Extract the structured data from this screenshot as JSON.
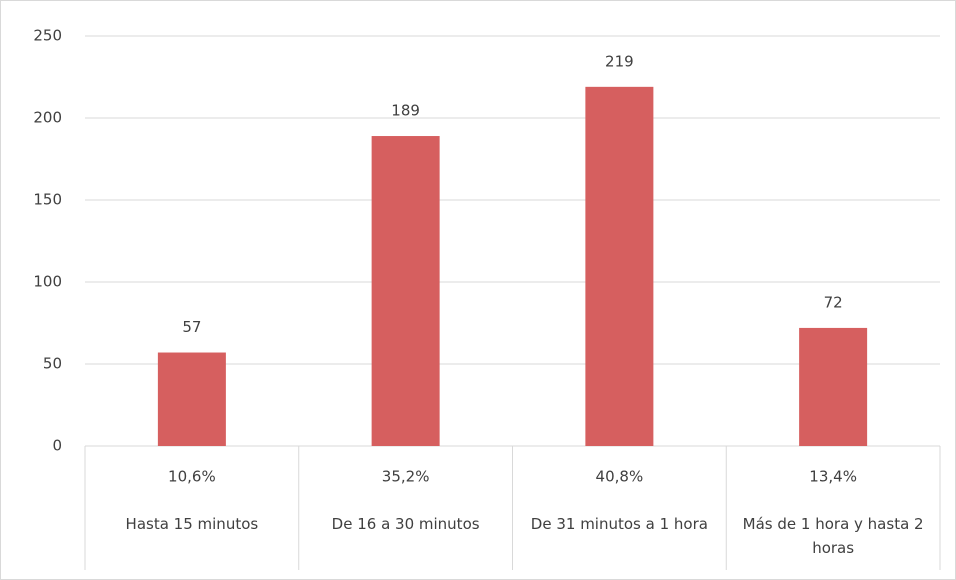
{
  "chart_data": {
    "type": "bar",
    "categories": [
      "Hasta 15 minutos",
      "De 16 a 30 minutos",
      "De 31 minutos a 1 hora",
      "Más de 1 hora y hasta 2 horas"
    ],
    "category_shares": [
      "10,6%",
      "35,2%",
      "40,8%",
      "13,4%"
    ],
    "values": [
      57,
      189,
      219,
      72
    ],
    "color": "#d65f5f",
    "ylim": [
      0,
      250
    ],
    "yticks": [
      0,
      50,
      100,
      150,
      200,
      250
    ],
    "grid": true
  }
}
